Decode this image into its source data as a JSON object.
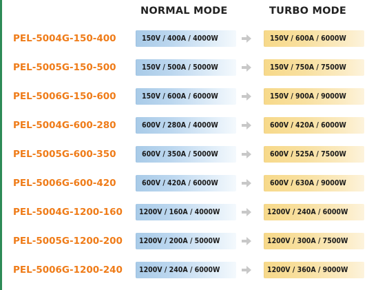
{
  "headers": {
    "normal_mode": "NORMAL MODE",
    "turbo_mode": "TURBO MODE"
  },
  "icons": {
    "arrow": "arrow-right-icon"
  },
  "colors": {
    "model_text": "#ef7c19",
    "normal_bar": "#a9cbe8",
    "turbo_bar": "#f7d98a",
    "arrow": "#c8c8c8",
    "left_rule": "#2e8b57"
  },
  "rows": [
    {
      "model": "PEL-5004G-150-400",
      "normal": "150V / 400A / 4000W",
      "turbo": "150V / 600A / 6000W"
    },
    {
      "model": "PEL-5005G-150-500",
      "normal": "150V / 500A / 5000W",
      "turbo": "150V / 750A / 7500W"
    },
    {
      "model": "PEL-5006G-150-600",
      "normal": "150V / 600A / 6000W",
      "turbo": "150V / 900A / 9000W"
    },
    {
      "model": "PEL-5004G-600-280",
      "normal": "600V / 280A / 4000W",
      "turbo": "600V / 420A / 6000W"
    },
    {
      "model": "PEL-5005G-600-350",
      "normal": "600V / 350A / 5000W",
      "turbo": "600V / 525A / 7500W"
    },
    {
      "model": "PEL-5006G-600-420",
      "normal": "600V / 420A / 6000W",
      "turbo": "600V / 630A / 9000W"
    },
    {
      "model": "PEL-5004G-1200-160",
      "normal": "1200V / 160A / 4000W",
      "turbo": "1200V / 240A / 6000W"
    },
    {
      "model": "PEL-5005G-1200-200",
      "normal": "1200V / 200A / 5000W",
      "turbo": "1200V / 300A / 7500W"
    },
    {
      "model": "PEL-5006G-1200-240",
      "normal": "1200V / 240A / 6000W",
      "turbo": "1200V / 360A / 9000W"
    }
  ]
}
